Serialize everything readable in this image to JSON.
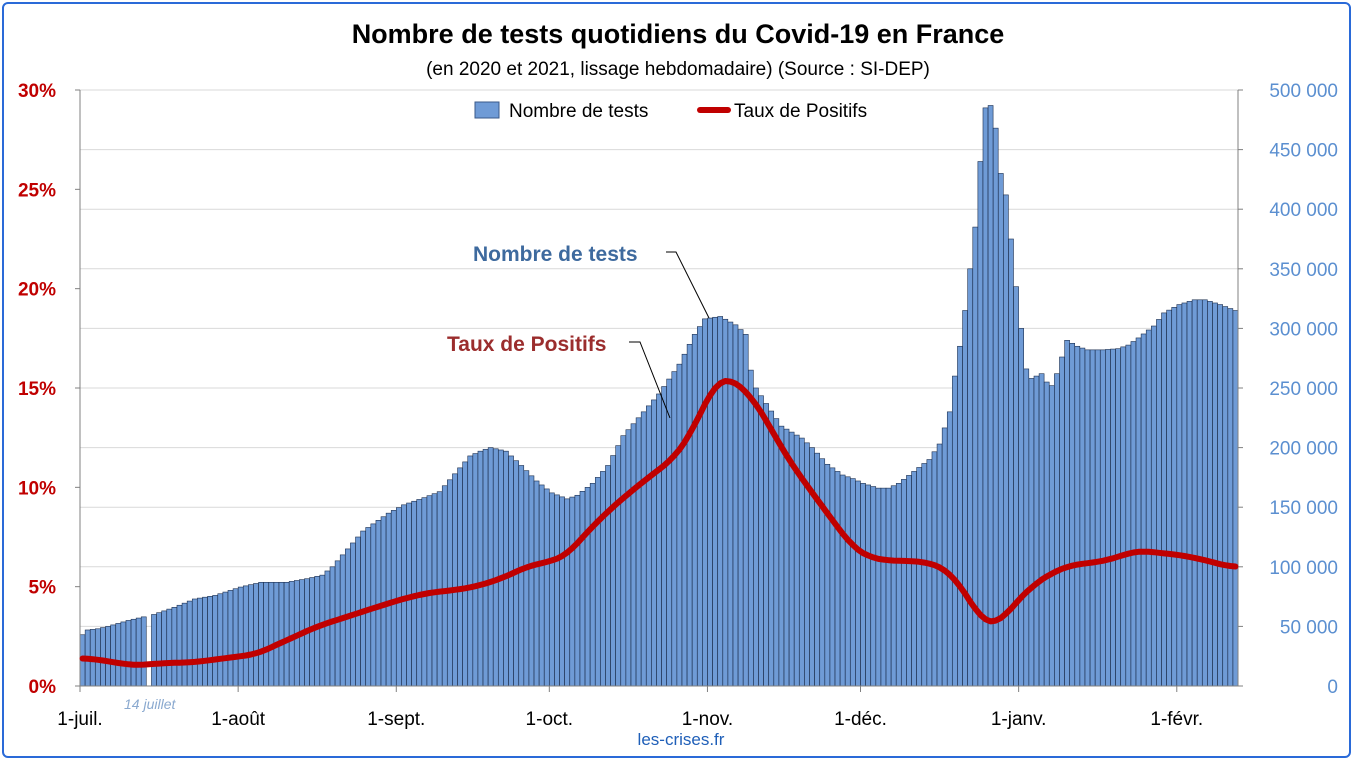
{
  "chart_data": {
    "type": "bar",
    "title": "Nombre de tests quotidiens du Covid-19 en France",
    "subtitle": "(en 2020 et 2021, lissage hebdomadaire) (Source : SI-DEP)",
    "x_tick_labels": [
      "1-juil.",
      "1-août",
      "1-sept.",
      "1-oct.",
      "1-nov.",
      "1-déc.",
      "1-janv.",
      "1-févr."
    ],
    "y_left": {
      "ticks": [
        "0%",
        "5%",
        "10%",
        "15%",
        "20%",
        "25%",
        "30%"
      ],
      "range": [
        0,
        30
      ],
      "color": "#c00000"
    },
    "y_right": {
      "ticks": [
        "0",
        "50 000",
        "100 000",
        "150 000",
        "200 000",
        "250 000",
        "300 000",
        "350 000",
        "400 000",
        "450 000",
        "500 000"
      ],
      "range": [
        0,
        500000
      ],
      "color": "#5b8fd0"
    },
    "grid": true,
    "legend_position": "top-center",
    "series": [
      {
        "name": "Nombre de tests",
        "type": "bar",
        "axis": "right",
        "color": "#6f9bd6",
        "keypoints": [
          [
            0,
            43000
          ],
          [
            1,
            47000
          ],
          [
            3,
            48000
          ],
          [
            5,
            50000
          ],
          [
            9,
            55000
          ],
          [
            12,
            58000
          ],
          [
            13,
            0
          ],
          [
            14,
            60000
          ],
          [
            18,
            66000
          ],
          [
            22,
            73000
          ],
          [
            26,
            76000
          ],
          [
            31,
            83000
          ],
          [
            35,
            87000
          ],
          [
            40,
            87000
          ],
          [
            44,
            90000
          ],
          [
            47,
            93000
          ],
          [
            49,
            100000
          ],
          [
            55,
            130000
          ],
          [
            60,
            145000
          ],
          [
            63,
            152000
          ],
          [
            67,
            158000
          ],
          [
            70,
            163000
          ],
          [
            73,
            178000
          ],
          [
            76,
            193000
          ],
          [
            78,
            197000
          ],
          [
            80,
            200000
          ],
          [
            83,
            197000
          ],
          [
            86,
            185000
          ],
          [
            89,
            172000
          ],
          [
            92,
            162000
          ],
          [
            95,
            157000
          ],
          [
            97,
            160000
          ],
          [
            100,
            170000
          ],
          [
            103,
            185000
          ],
          [
            106,
            210000
          ],
          [
            109,
            225000
          ],
          [
            113,
            245000
          ],
          [
            117,
            270000
          ],
          [
            120,
            295000
          ],
          [
            122,
            308000
          ],
          [
            125,
            310000
          ],
          [
            128,
            303000
          ],
          [
            130,
            295000
          ],
          [
            131,
            265000
          ],
          [
            132,
            250000
          ],
          [
            134,
            237000
          ],
          [
            137,
            218000
          ],
          [
            141,
            208000
          ],
          [
            143,
            200000
          ],
          [
            146,
            186000
          ],
          [
            149,
            177000
          ],
          [
            151,
            174000
          ],
          [
            153,
            170000
          ],
          [
            156,
            166000
          ],
          [
            158,
            166000
          ],
          [
            160,
            170000
          ],
          [
            163,
            180000
          ],
          [
            166,
            190000
          ],
          [
            168,
            203000
          ],
          [
            170,
            230000
          ],
          [
            171,
            260000
          ],
          [
            172,
            285000
          ],
          [
            173,
            315000
          ],
          [
            174,
            350000
          ],
          [
            175,
            385000
          ],
          [
            176,
            440000
          ],
          [
            177,
            485000
          ],
          [
            178,
            487000
          ],
          [
            179,
            468000
          ],
          [
            180,
            430000
          ],
          [
            181,
            412000
          ],
          [
            182,
            375000
          ],
          [
            183,
            335000
          ],
          [
            184,
            300000
          ],
          [
            185,
            266000
          ],
          [
            186,
            258000
          ],
          [
            188,
            262000
          ],
          [
            189,
            255000
          ],
          [
            190,
            252000
          ],
          [
            191,
            262000
          ],
          [
            193,
            290000
          ],
          [
            195,
            285000
          ],
          [
            197,
            282000
          ],
          [
            200,
            282000
          ],
          [
            203,
            283000
          ],
          [
            205,
            286000
          ],
          [
            207,
            292000
          ],
          [
            210,
            302000
          ],
          [
            212,
            313000
          ],
          [
            215,
            320000
          ],
          [
            218,
            324000
          ],
          [
            220,
            324000
          ],
          [
            223,
            320000
          ],
          [
            226,
            315000
          ],
          [
            228,
            313000
          ]
        ]
      },
      {
        "name": "Taux de Positifs",
        "type": "line",
        "axis": "left",
        "color": "#c00000",
        "keypoints": [
          [
            0,
            1.4
          ],
          [
            4,
            1.3
          ],
          [
            8,
            1.1
          ],
          [
            11,
            1.05
          ],
          [
            16,
            1.15
          ],
          [
            22,
            1.2
          ],
          [
            28,
            1.4
          ],
          [
            34,
            1.6
          ],
          [
            40,
            2.3
          ],
          [
            46,
            3.0
          ],
          [
            52,
            3.5
          ],
          [
            58,
            4.0
          ],
          [
            63,
            4.4
          ],
          [
            68,
            4.7
          ],
          [
            72,
            4.8
          ],
          [
            77,
            5.0
          ],
          [
            82,
            5.4
          ],
          [
            87,
            6.0
          ],
          [
            92,
            6.3
          ],
          [
            95,
            6.6
          ],
          [
            98,
            7.5
          ],
          [
            103,
            8.8
          ],
          [
            108,
            9.9
          ],
          [
            113,
            10.9
          ],
          [
            116,
            11.5
          ],
          [
            119,
            12.6
          ],
          [
            122,
            14.2
          ],
          [
            124,
            15.2
          ],
          [
            126,
            15.5
          ],
          [
            128,
            15.3
          ],
          [
            131,
            14.6
          ],
          [
            134,
            13.4
          ],
          [
            137,
            12.0
          ],
          [
            140,
            10.8
          ],
          [
            144,
            9.4
          ],
          [
            148,
            8.0
          ],
          [
            151,
            7.0
          ],
          [
            154,
            6.5
          ],
          [
            158,
            6.3
          ],
          [
            162,
            6.3
          ],
          [
            166,
            6.2
          ],
          [
            169,
            5.9
          ],
          [
            171,
            5.4
          ],
          [
            174,
            4.3
          ],
          [
            176,
            3.4
          ],
          [
            178,
            3.1
          ],
          [
            180,
            3.3
          ],
          [
            183,
            4.2
          ],
          [
            186,
            5.0
          ],
          [
            190,
            5.7
          ],
          [
            194,
            6.1
          ],
          [
            198,
            6.2
          ],
          [
            202,
            6.4
          ],
          [
            205,
            6.7
          ],
          [
            208,
            6.8
          ],
          [
            211,
            6.7
          ],
          [
            215,
            6.6
          ],
          [
            219,
            6.4
          ],
          [
            222,
            6.2
          ],
          [
            225,
            6.0
          ]
        ]
      }
    ],
    "days": 226,
    "x_tick_days": [
      0,
      31,
      62,
      92,
      123,
      153,
      184,
      215
    ]
  },
  "labels": {
    "legend_tests": "Nombre de tests",
    "legend_taux": "Taux de Positifs",
    "annotation_tests": "Nombre de tests",
    "annotation_taux": "Taux de Positifs",
    "annotation_date": "14 juillet",
    "source_footer": "les-crises.fr"
  }
}
